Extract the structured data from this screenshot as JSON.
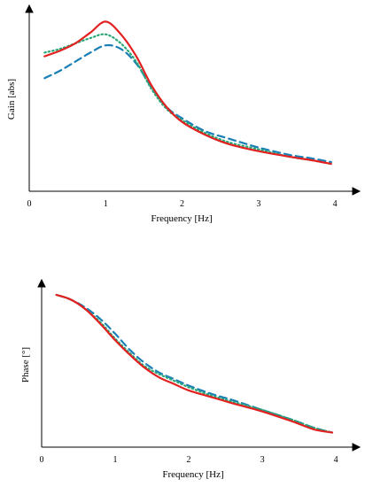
{
  "chart_data": [
    {
      "type": "line",
      "xlabel": "Frequency [Hz]",
      "ylabel": "Gain [abs]",
      "xlim": [
        0,
        4.3
      ],
      "ylim": [
        0,
        1
      ],
      "xticks": [
        "0",
        "1",
        "2",
        "3",
        "4"
      ],
      "yticks": [],
      "grid": false,
      "legend": "none",
      "series": [
        {
          "color": "#1a7fb5",
          "style": "dashed",
          "x": [
            0.2,
            0.4,
            0.6,
            0.8,
            1.0,
            1.2,
            1.4,
            1.6,
            1.8,
            2.0,
            2.3,
            2.6,
            3.0,
            3.4,
            3.7,
            3.95
          ],
          "y": [
            0.62,
            0.66,
            0.71,
            0.76,
            0.8,
            0.78,
            0.7,
            0.57,
            0.46,
            0.4,
            0.33,
            0.29,
            0.24,
            0.2,
            0.18,
            0.16
          ]
        },
        {
          "color": "#2aa876",
          "style": "dotted",
          "x": [
            0.2,
            0.4,
            0.6,
            0.8,
            1.0,
            1.2,
            1.4,
            1.6,
            1.8,
            2.0,
            2.3,
            2.6,
            3.0,
            3.4,
            3.7,
            3.95
          ],
          "y": [
            0.76,
            0.78,
            0.81,
            0.84,
            0.86,
            0.81,
            0.71,
            0.56,
            0.45,
            0.39,
            0.32,
            0.27,
            0.23,
            0.19,
            0.17,
            0.15
          ]
        },
        {
          "color": "#e32020",
          "style": "solid",
          "x": [
            0.2,
            0.4,
            0.6,
            0.8,
            1.0,
            1.2,
            1.4,
            1.6,
            1.8,
            2.0,
            2.3,
            2.6,
            3.0,
            3.4,
            3.7,
            3.95
          ],
          "y": [
            0.74,
            0.77,
            0.81,
            0.87,
            0.93,
            0.86,
            0.74,
            0.58,
            0.46,
            0.38,
            0.31,
            0.26,
            0.22,
            0.19,
            0.17,
            0.15
          ]
        }
      ]
    },
    {
      "type": "line",
      "xlabel": "Frequency [Hz]",
      "ylabel": "Phase [°]",
      "xlim": [
        0,
        4.3
      ],
      "ylim": [
        0,
        1
      ],
      "xticks": [
        "0",
        "1",
        "2",
        "3",
        "4"
      ],
      "yticks": [],
      "grid": false,
      "legend": "none",
      "series": [
        {
          "color": "#1a7fb5",
          "style": "dashed",
          "x": [
            0.2,
            0.4,
            0.6,
            0.8,
            1.0,
            1.2,
            1.4,
            1.6,
            1.8,
            2.0,
            2.3,
            2.6,
            3.0,
            3.4,
            3.7,
            3.95
          ],
          "y": [
            0.94,
            0.91,
            0.86,
            0.79,
            0.7,
            0.6,
            0.52,
            0.46,
            0.42,
            0.38,
            0.33,
            0.29,
            0.23,
            0.17,
            0.12,
            0.09
          ]
        },
        {
          "color": "#2aa876",
          "style": "dotted",
          "x": [
            0.2,
            0.4,
            0.6,
            0.8,
            1.0,
            1.2,
            1.4,
            1.6,
            1.8,
            2.0,
            2.3,
            2.6,
            3.0,
            3.4,
            3.7,
            3.95
          ],
          "y": [
            0.94,
            0.91,
            0.85,
            0.77,
            0.67,
            0.58,
            0.5,
            0.45,
            0.41,
            0.37,
            0.32,
            0.28,
            0.23,
            0.17,
            0.12,
            0.09
          ]
        },
        {
          "color": "#e32020",
          "style": "solid",
          "x": [
            0.2,
            0.4,
            0.6,
            0.8,
            1.0,
            1.2,
            1.4,
            1.6,
            1.8,
            2.0,
            2.3,
            2.6,
            3.0,
            3.4,
            3.7,
            3.95
          ],
          "y": [
            0.94,
            0.91,
            0.85,
            0.76,
            0.66,
            0.57,
            0.49,
            0.43,
            0.39,
            0.35,
            0.31,
            0.27,
            0.22,
            0.16,
            0.11,
            0.09
          ]
        }
      ]
    }
  ]
}
